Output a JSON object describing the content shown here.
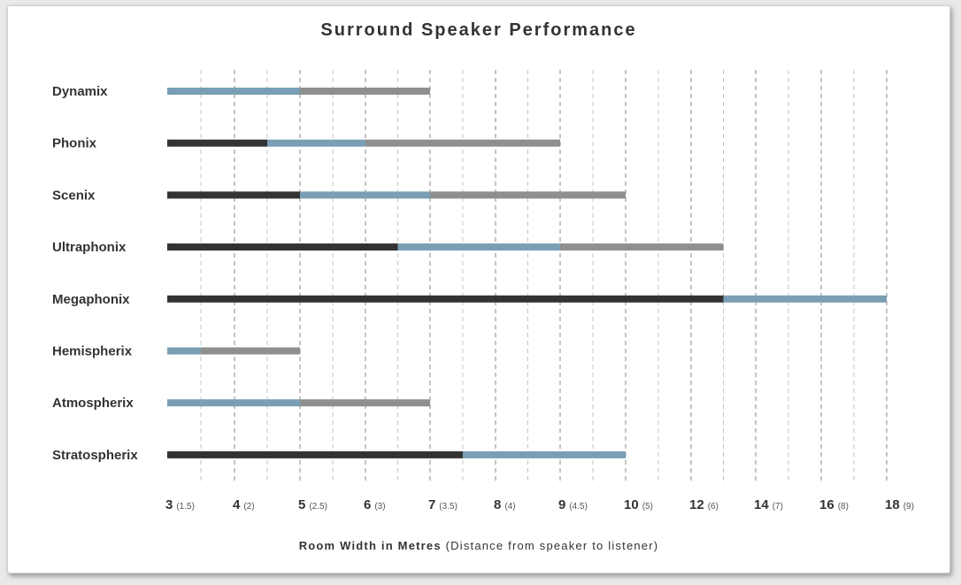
{
  "chart_data": {
    "type": "bar",
    "orientation": "horizontal-stacked-range",
    "title": "Surround Speaker Performance",
    "xlabel_main": "Room Width in Metres",
    "xlabel_sub": "(Distance from speaker to listener)",
    "x_ticks": [
      {
        "value": "3",
        "sub": "(1.5)"
      },
      {
        "value": "4",
        "sub": "(2)"
      },
      {
        "value": "5",
        "sub": "(2.5)"
      },
      {
        "value": "6",
        "sub": "(3)"
      },
      {
        "value": "7",
        "sub": "(3.5)"
      },
      {
        "value": "8",
        "sub": "(4)"
      },
      {
        "value": "9",
        "sub": "(4.5)"
      },
      {
        "value": "10",
        "sub": "(5)"
      },
      {
        "value": "12",
        "sub": "(6)"
      },
      {
        "value": "14",
        "sub": "(7)"
      },
      {
        "value": "16",
        "sub": "(8)"
      },
      {
        "value": "18",
        "sub": "(9)"
      }
    ],
    "x_axis_type": "categorical-nonlinear",
    "grid": "vertical dashed",
    "segment_colors": [
      "#333333",
      "#7a9fb5",
      "#8f8f8f"
    ],
    "categories": [
      "Dynamix",
      "Phonix",
      "Scenix",
      "Ultraphonix",
      "Megaphonix",
      "Hemispherix",
      "Atmospherix",
      "Stratospherix"
    ],
    "segments": [
      [
        {
          "from": 3,
          "to": 5,
          "color": "#7a9fb5"
        },
        {
          "from": 5,
          "to": 7,
          "color": "#8f8f8f"
        }
      ],
      [
        {
          "from": 3,
          "to": 4.5,
          "color": "#333333"
        },
        {
          "from": 4.5,
          "to": 6,
          "color": "#7a9fb5"
        },
        {
          "from": 6,
          "to": 9,
          "color": "#8f8f8f"
        }
      ],
      [
        {
          "from": 3,
          "to": 5,
          "color": "#333333"
        },
        {
          "from": 5,
          "to": 7,
          "color": "#7a9fb5"
        },
        {
          "from": 7,
          "to": 10,
          "color": "#8f8f8f"
        }
      ],
      [
        {
          "from": 3,
          "to": 6.5,
          "color": "#333333"
        },
        {
          "from": 6.5,
          "to": 9,
          "color": "#7a9fb5"
        },
        {
          "from": 9,
          "to": 13,
          "color": "#8f8f8f"
        }
      ],
      [
        {
          "from": 3,
          "to": 13,
          "color": "#333333"
        },
        {
          "from": 13,
          "to": 18,
          "color": "#7a9fb5"
        }
      ],
      [
        {
          "from": 3,
          "to": 3.5,
          "color": "#7a9fb5"
        },
        {
          "from": 3.5,
          "to": 5,
          "color": "#8f8f8f"
        }
      ],
      [
        {
          "from": 3,
          "to": 5,
          "color": "#7a9fb5"
        },
        {
          "from": 5,
          "to": 7,
          "color": "#8f8f8f"
        }
      ],
      [
        {
          "from": 3,
          "to": 7.5,
          "color": "#333333"
        },
        {
          "from": 7.5,
          "to": 10,
          "color": "#7a9fb5"
        }
      ]
    ]
  }
}
